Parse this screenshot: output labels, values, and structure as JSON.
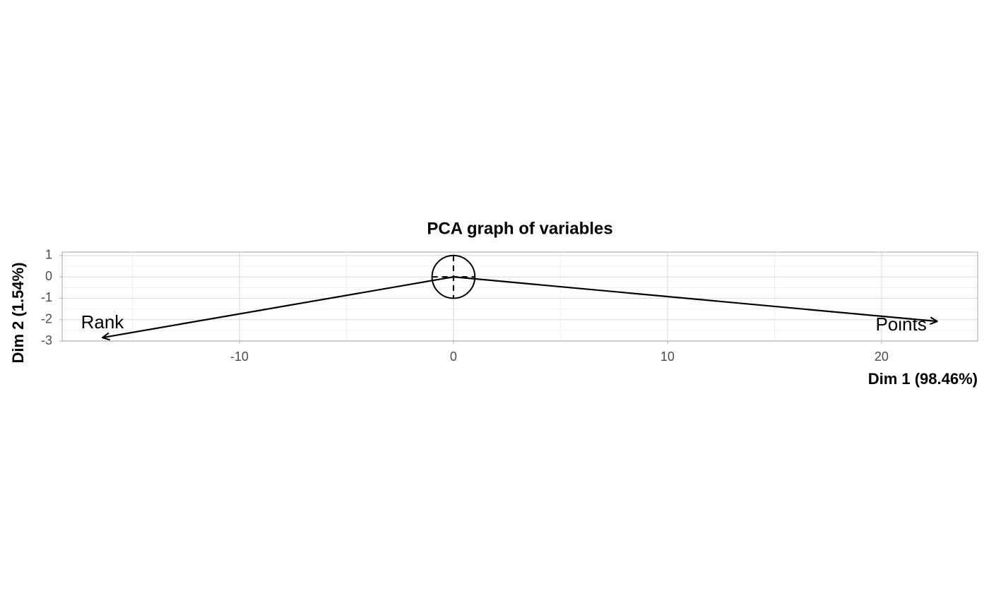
{
  "chart_data": {
    "type": "pca-variables",
    "title": "PCA graph of variables",
    "x_label": "Dim 1 (98.46%)",
    "y_label": "Dim 2 (1.54%)",
    "xlim": [
      -18.28,
      24.49
    ],
    "ylim": [
      -3.0,
      1.16
    ],
    "xticks": [
      -10,
      0,
      10,
      20
    ],
    "yticks": [
      -3,
      -2,
      -1,
      0,
      1
    ],
    "grid": true,
    "color": "#000000",
    "circle_radius": 1,
    "vectors": [
      {
        "name": "Rank",
        "x": -16.4,
        "y": -2.84
      },
      {
        "name": "Points",
        "x": 22.6,
        "y": -2.08
      }
    ]
  }
}
